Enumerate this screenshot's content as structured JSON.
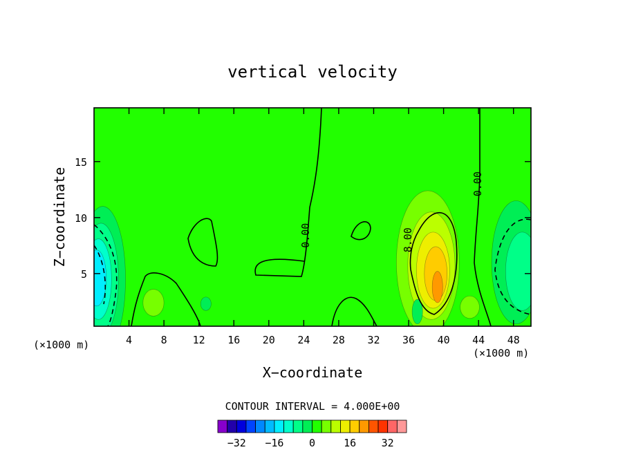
{
  "chart_data": {
    "type": "heatmap",
    "title": "vertical velocity",
    "xlabel": "X−coordinate",
    "ylabel": "Z−coordinate",
    "x_unit_left": "(×1000 m)",
    "x_unit_right": "(×1000 m)",
    "xlim": [
      0,
      50
    ],
    "ylim": [
      0.3,
      19.8
    ],
    "x_ticks": [
      {
        "v": 4,
        "label": "4"
      },
      {
        "v": 8,
        "label": "8"
      },
      {
        "v": 12,
        "label": "12"
      },
      {
        "v": 16,
        "label": "16"
      },
      {
        "v": 20,
        "label": "20"
      },
      {
        "v": 24,
        "label": "24"
      },
      {
        "v": 28,
        "label": "28"
      },
      {
        "v": 32,
        "label": "32"
      },
      {
        "v": 36,
        "label": "36"
      },
      {
        "v": 40,
        "label": "40"
      },
      {
        "v": 44,
        "label": "44"
      },
      {
        "v": 48,
        "label": "48"
      }
    ],
    "y_ticks": [
      {
        "v": 5,
        "label": "5"
      },
      {
        "v": 10,
        "label": "10"
      },
      {
        "v": 15,
        "label": "15"
      }
    ],
    "contour_interval_label": "CONTOUR INTERVAL = 4.000E+00",
    "contour_labels": [
      {
        "text": "0.00",
        "x": 24.6,
        "y": 8.4
      },
      {
        "text": "8.00",
        "x": 36.3,
        "y": 8.0
      },
      {
        "text": "0.00",
        "x": 44.3,
        "y": 13.0
      }
    ],
    "colorbar": {
      "levels": [
        -36,
        -32,
        -28,
        -24,
        -20,
        -16,
        -12,
        -8,
        -4,
        0,
        4,
        8,
        12,
        16,
        20,
        24,
        28,
        32,
        36
      ],
      "colors": [
        "#8800cc",
        "#2200aa",
        "#0000dd",
        "#0044ff",
        "#0088ff",
        "#00bbff",
        "#00eeff",
        "#00ffcc",
        "#00ff88",
        "#00ee55",
        "#22ff00",
        "#77ff00",
        "#bbff00",
        "#eeee00",
        "#ffcc00",
        "#ff9900",
        "#ff5500",
        "#ff3300",
        "#ff6666",
        "#ff9999"
      ],
      "tick_labels": [
        {
          "v": -32,
          "label": "−32"
        },
        {
          "v": -16,
          "label": "−16"
        },
        {
          "v": 0,
          "label": "0"
        },
        {
          "v": 16,
          "label": "16"
        },
        {
          "v": 32,
          "label": "32"
        }
      ]
    },
    "features": [
      {
        "type": "background",
        "value": 0
      },
      {
        "type": "blob",
        "cx": 38.2,
        "cy": 6.0,
        "rx": 3.6,
        "ry": 6.4,
        "value": 4
      },
      {
        "type": "blob",
        "cx": 38.6,
        "cy": 5.7,
        "rx": 2.7,
        "ry": 4.8,
        "value": 8
      },
      {
        "type": "blob",
        "cx": 38.8,
        "cy": 5.3,
        "rx": 1.9,
        "ry": 3.4,
        "value": 12
      },
      {
        "type": "blob",
        "cx": 39.1,
        "cy": 5.0,
        "rx": 1.3,
        "ry": 2.4,
        "value": 16
      },
      {
        "type": "blob",
        "cx": 39.3,
        "cy": 3.8,
        "rx": 0.6,
        "ry": 1.4,
        "value": 20
      },
      {
        "type": "blob",
        "cx": 1.0,
        "cy": 4.5,
        "rx": 2.6,
        "ry": 6.5,
        "value": -4
      },
      {
        "type": "blob",
        "cx": 0.8,
        "cy": 4.5,
        "rx": 2.0,
        "ry": 5.0,
        "value": -8
      },
      {
        "type": "blob",
        "cx": 0.5,
        "cy": 4.5,
        "rx": 1.5,
        "ry": 3.6,
        "value": -12
      },
      {
        "type": "blob",
        "cx": 0.3,
        "cy": 4.6,
        "rx": 1.1,
        "ry": 2.5,
        "value": -16
      },
      {
        "type": "blob",
        "cx": 48.3,
        "cy": 6.0,
        "rx": 2.8,
        "ry": 5.5,
        "value": -4
      },
      {
        "type": "blob",
        "cx": 49.0,
        "cy": 5.2,
        "rx": 1.9,
        "ry": 3.5,
        "value": -8
      },
      {
        "type": "blob",
        "cx": 6.8,
        "cy": 2.4,
        "rx": 1.2,
        "ry": 1.2,
        "value": 4
      },
      {
        "type": "blob",
        "cx": 12.8,
        "cy": 2.3,
        "rx": 0.6,
        "ry": 0.6,
        "value": -4
      },
      {
        "type": "blob",
        "cx": 43.0,
        "cy": 2.0,
        "rx": 1.1,
        "ry": 1.0,
        "value": 4
      },
      {
        "type": "blob",
        "cx": 37.0,
        "cy": 1.6,
        "rx": 0.6,
        "ry": 1.1,
        "value": -4
      }
    ]
  }
}
